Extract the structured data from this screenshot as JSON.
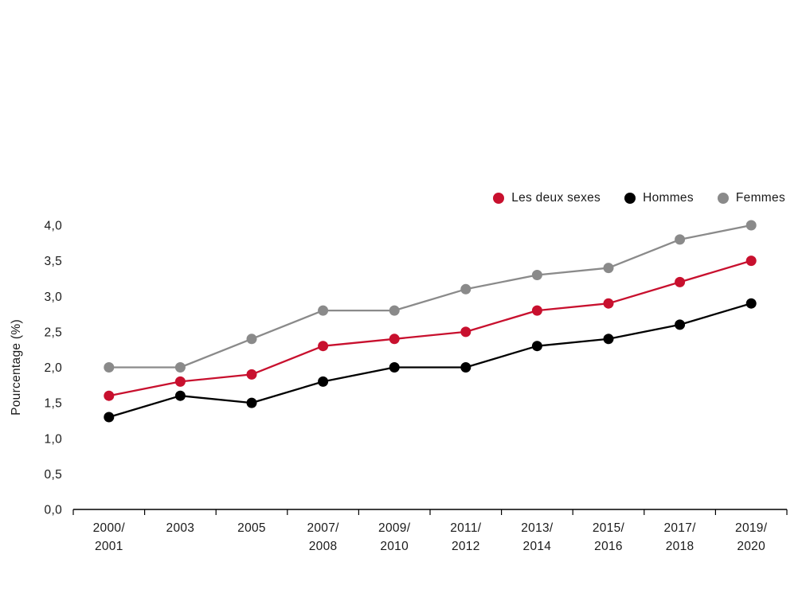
{
  "chart_data": {
    "type": "line",
    "title": "",
    "xlabel": "",
    "ylabel": "Pourcentage (%)",
    "ylim": [
      0,
      4
    ],
    "ytick_step": 0.5,
    "decimal_separator": ",",
    "grid": false,
    "legend_position": "top-right",
    "marker": "circle",
    "categories": [
      "2000/2001",
      "2003",
      "2005",
      "2007/2008",
      "2009/2010",
      "2011/2012",
      "2013/2014",
      "2015/2016",
      "2017/2018",
      "2019/2020"
    ],
    "series": [
      {
        "name": "Les deux sexes",
        "color": "#c8102e",
        "values": [
          1.6,
          1.8,
          1.9,
          2.3,
          2.4,
          2.5,
          2.8,
          2.9,
          3.2,
          3.5
        ]
      },
      {
        "name": "Hommes",
        "color": "#000000",
        "values": [
          1.3,
          1.6,
          1.5,
          1.8,
          2.0,
          2.0,
          2.3,
          2.4,
          2.6,
          2.9
        ]
      },
      {
        "name": "Femmes",
        "color": "#8a8a8a",
        "values": [
          2.0,
          2.0,
          2.4,
          2.8,
          2.8,
          3.1,
          3.3,
          3.4,
          3.8,
          4.0
        ]
      }
    ]
  }
}
